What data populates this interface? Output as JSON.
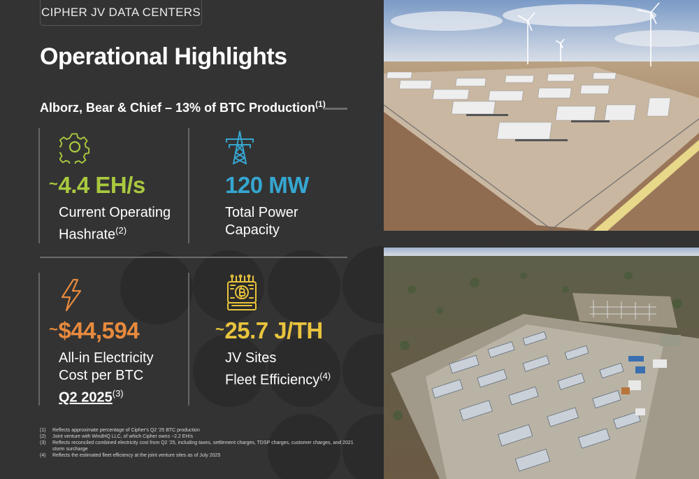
{
  "header": {
    "tag": "CIPHER JV DATA CENTERS",
    "title": "Operational Highlights"
  },
  "subtitle": {
    "text": "Alborz, Bear & Chief – 13% of BTC Production",
    "footnote": "(1)"
  },
  "metrics": [
    {
      "prefix": "~",
      "value": "4.4 EH/s",
      "line1": "Current Operating",
      "line2": "Hashrate",
      "footnote": "(2)",
      "icon": "gear-icon",
      "color": "#a9c93f"
    },
    {
      "prefix": "",
      "value": "120 MW",
      "line1": "Total Power",
      "line2": "Capacity",
      "footnote": "",
      "icon": "power-tower-icon",
      "color": "#35a7d1"
    },
    {
      "prefix": "~",
      "value": "$44,594",
      "line1": "All-in Electricity",
      "line2": "Cost per BTC",
      "line3": "Q2 2025",
      "footnote": "(3)",
      "icon": "lightning-icon",
      "color": "#e78a3e"
    },
    {
      "prefix": "~",
      "value": "25.7 J/TH",
      "line1": "JV Sites",
      "line2": "Fleet Efficiency",
      "footnote": "(4)",
      "icon": "bitcoin-chip-icon",
      "color": "#e9c43d"
    }
  ],
  "footnotes": [
    {
      "n": "(1)",
      "text": "Reflects approximate percentage of Cipher's Q2 '25 BTC production"
    },
    {
      "n": "(2)",
      "text": "Joint venture with WindHQ LLC, of which Cipher owns ~2.2 EH/s"
    },
    {
      "n": "(3)",
      "text": "Reflects reconciled combined electricity cost from Q2 '25, including taxes, settlement charges, TDSP charges, customer charges, and 2021 storm surcharge"
    },
    {
      "n": "(4)",
      "text": "Reflects the estimated fleet efficiency at the joint venture sites as of July 2025"
    }
  ]
}
